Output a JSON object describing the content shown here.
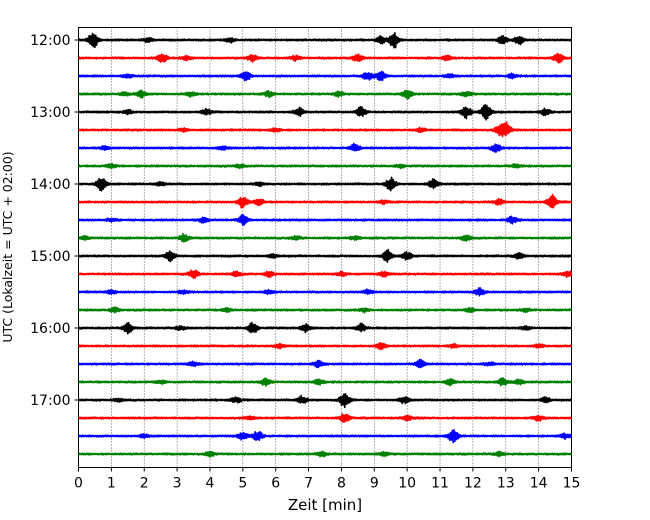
{
  "chart_data": {
    "type": "line",
    "title": "",
    "xlabel": "Zeit  [min]",
    "ylabel": "UTC (Lokalzeit = UTC + 02:00)",
    "xlim": [
      0,
      15
    ],
    "x_ticks": [
      "0",
      "1",
      "2",
      "3",
      "4",
      "5",
      "6",
      "7",
      "8",
      "9",
      "10",
      "11",
      "12",
      "13",
      "14",
      "15"
    ],
    "y_tick_labels": [
      "12:00",
      "13:00",
      "14:00",
      "15:00",
      "16:00",
      "17:00"
    ],
    "grid": "vertical dotted at each minute",
    "legend": "none",
    "trace_colors": [
      "#000000",
      "#ff0000",
      "#0000ff",
      "#008000"
    ],
    "traces": [
      {
        "start": "12:00",
        "events": [
          [
            0.45,
            1.0
          ],
          [
            9.6,
            1.0
          ],
          [
            12.9,
            0.5
          ],
          [
            13.4,
            0.5
          ],
          [
            4.6,
            0.3
          ],
          [
            2.1,
            0.25
          ],
          [
            9.2,
            0.45
          ]
        ]
      },
      {
        "start": "12:15",
        "events": [
          [
            2.55,
            0.55
          ],
          [
            5.3,
            0.4
          ],
          [
            8.5,
            0.5
          ],
          [
            11.2,
            0.25
          ],
          [
            14.6,
            0.55
          ],
          [
            3.3,
            0.25
          ],
          [
            6.6,
            0.3
          ]
        ]
      },
      {
        "start": "12:30",
        "events": [
          [
            5.1,
            0.55
          ],
          [
            8.8,
            0.5
          ],
          [
            9.2,
            0.55
          ],
          [
            13.2,
            0.25
          ],
          [
            1.5,
            0.2
          ],
          [
            11.3,
            0.2
          ]
        ]
      },
      {
        "start": "12:45",
        "events": [
          [
            1.9,
            0.45
          ],
          [
            3.4,
            0.3
          ],
          [
            5.8,
            0.35
          ],
          [
            7.9,
            0.3
          ],
          [
            10.0,
            0.55
          ],
          [
            11.8,
            0.3
          ],
          [
            1.4,
            0.2
          ]
        ]
      },
      {
        "start": "13:00",
        "events": [
          [
            3.9,
            0.35
          ],
          [
            6.7,
            0.5
          ],
          [
            8.6,
            0.6
          ],
          [
            11.8,
            0.7
          ],
          [
            12.4,
            1.0
          ],
          [
            14.2,
            0.4
          ],
          [
            1.5,
            0.25
          ]
        ]
      },
      {
        "start": "13:15",
        "events": [
          [
            10.4,
            0.25
          ],
          [
            13.0,
            0.9
          ],
          [
            12.8,
            0.5
          ],
          [
            3.2,
            0.2
          ],
          [
            6.0,
            0.2
          ]
        ]
      },
      {
        "start": "13:30",
        "events": [
          [
            8.4,
            0.45
          ],
          [
            12.7,
            0.45
          ],
          [
            4.4,
            0.2
          ],
          [
            0.8,
            0.2
          ]
        ]
      },
      {
        "start": "13:45",
        "events": [
          [
            1.0,
            0.25
          ],
          [
            4.9,
            0.2
          ],
          [
            9.8,
            0.2
          ],
          [
            13.3,
            0.2
          ]
        ]
      },
      {
        "start": "14:00",
        "events": [
          [
            0.7,
            0.8
          ],
          [
            9.5,
            0.75
          ],
          [
            10.8,
            0.55
          ],
          [
            5.5,
            0.25
          ],
          [
            2.5,
            0.2
          ]
        ]
      },
      {
        "start": "14:15",
        "events": [
          [
            5.0,
            0.7
          ],
          [
            5.5,
            0.35
          ],
          [
            12.8,
            0.35
          ],
          [
            14.4,
            0.9
          ],
          [
            9.3,
            0.2
          ]
        ]
      },
      {
        "start": "14:30",
        "events": [
          [
            3.8,
            0.3
          ],
          [
            5.0,
            0.6
          ],
          [
            13.2,
            0.4
          ],
          [
            1.0,
            0.2
          ]
        ]
      },
      {
        "start": "14:45",
        "events": [
          [
            0.2,
            0.25
          ],
          [
            3.2,
            0.45
          ],
          [
            6.6,
            0.25
          ],
          [
            11.8,
            0.35
          ],
          [
            8.4,
            0.2
          ]
        ]
      },
      {
        "start": "15:00",
        "events": [
          [
            2.8,
            0.7
          ],
          [
            9.4,
            0.7
          ],
          [
            10.0,
            0.5
          ],
          [
            13.4,
            0.35
          ],
          [
            5.9,
            0.2
          ]
        ]
      },
      {
        "start": "15:15",
        "events": [
          [
            3.5,
            0.5
          ],
          [
            4.8,
            0.3
          ],
          [
            5.8,
            0.35
          ],
          [
            9.3,
            0.3
          ],
          [
            14.9,
            0.4
          ],
          [
            8.0,
            0.25
          ]
        ]
      },
      {
        "start": "15:30",
        "events": [
          [
            3.2,
            0.25
          ],
          [
            5.8,
            0.25
          ],
          [
            8.8,
            0.25
          ],
          [
            12.2,
            0.45
          ],
          [
            1.0,
            0.2
          ]
        ]
      },
      {
        "start": "15:45",
        "events": [
          [
            1.1,
            0.25
          ],
          [
            4.5,
            0.2
          ],
          [
            8.7,
            0.2
          ],
          [
            11.9,
            0.25
          ],
          [
            13.6,
            0.2
          ]
        ]
      },
      {
        "start": "16:00",
        "events": [
          [
            1.5,
            0.65
          ],
          [
            5.3,
            0.7
          ],
          [
            6.9,
            0.45
          ],
          [
            8.6,
            0.5
          ],
          [
            13.6,
            0.2
          ],
          [
            3.1,
            0.25
          ]
        ]
      },
      {
        "start": "16:15",
        "events": [
          [
            6.1,
            0.25
          ],
          [
            9.2,
            0.35
          ],
          [
            11.4,
            0.2
          ],
          [
            14.0,
            0.2
          ]
        ]
      },
      {
        "start": "16:30",
        "events": [
          [
            3.5,
            0.3
          ],
          [
            7.3,
            0.35
          ],
          [
            10.4,
            0.45
          ],
          [
            12.5,
            0.2
          ]
        ]
      },
      {
        "start": "16:45",
        "events": [
          [
            5.7,
            0.45
          ],
          [
            7.3,
            0.35
          ],
          [
            11.3,
            0.35
          ],
          [
            12.9,
            0.45
          ],
          [
            13.4,
            0.3
          ],
          [
            2.5,
            0.2
          ]
        ]
      },
      {
        "start": "17:00",
        "events": [
          [
            4.8,
            0.3
          ],
          [
            6.8,
            0.5
          ],
          [
            8.1,
            1.0
          ],
          [
            9.9,
            0.4
          ],
          [
            14.2,
            0.3
          ],
          [
            1.2,
            0.2
          ]
        ]
      },
      {
        "start": "17:15",
        "events": [
          [
            8.1,
            0.5
          ],
          [
            10.0,
            0.3
          ],
          [
            14.0,
            0.3
          ],
          [
            5.2,
            0.2
          ]
        ]
      },
      {
        "start": "17:30",
        "events": [
          [
            5.0,
            0.45
          ],
          [
            5.45,
            0.6
          ],
          [
            11.4,
            0.8
          ],
          [
            14.8,
            0.3
          ],
          [
            2.0,
            0.2
          ]
        ]
      },
      {
        "start": "17:45",
        "events": [
          [
            4.0,
            0.3
          ],
          [
            7.4,
            0.3
          ],
          [
            12.8,
            0.25
          ],
          [
            9.3,
            0.2
          ]
        ]
      }
    ]
  }
}
